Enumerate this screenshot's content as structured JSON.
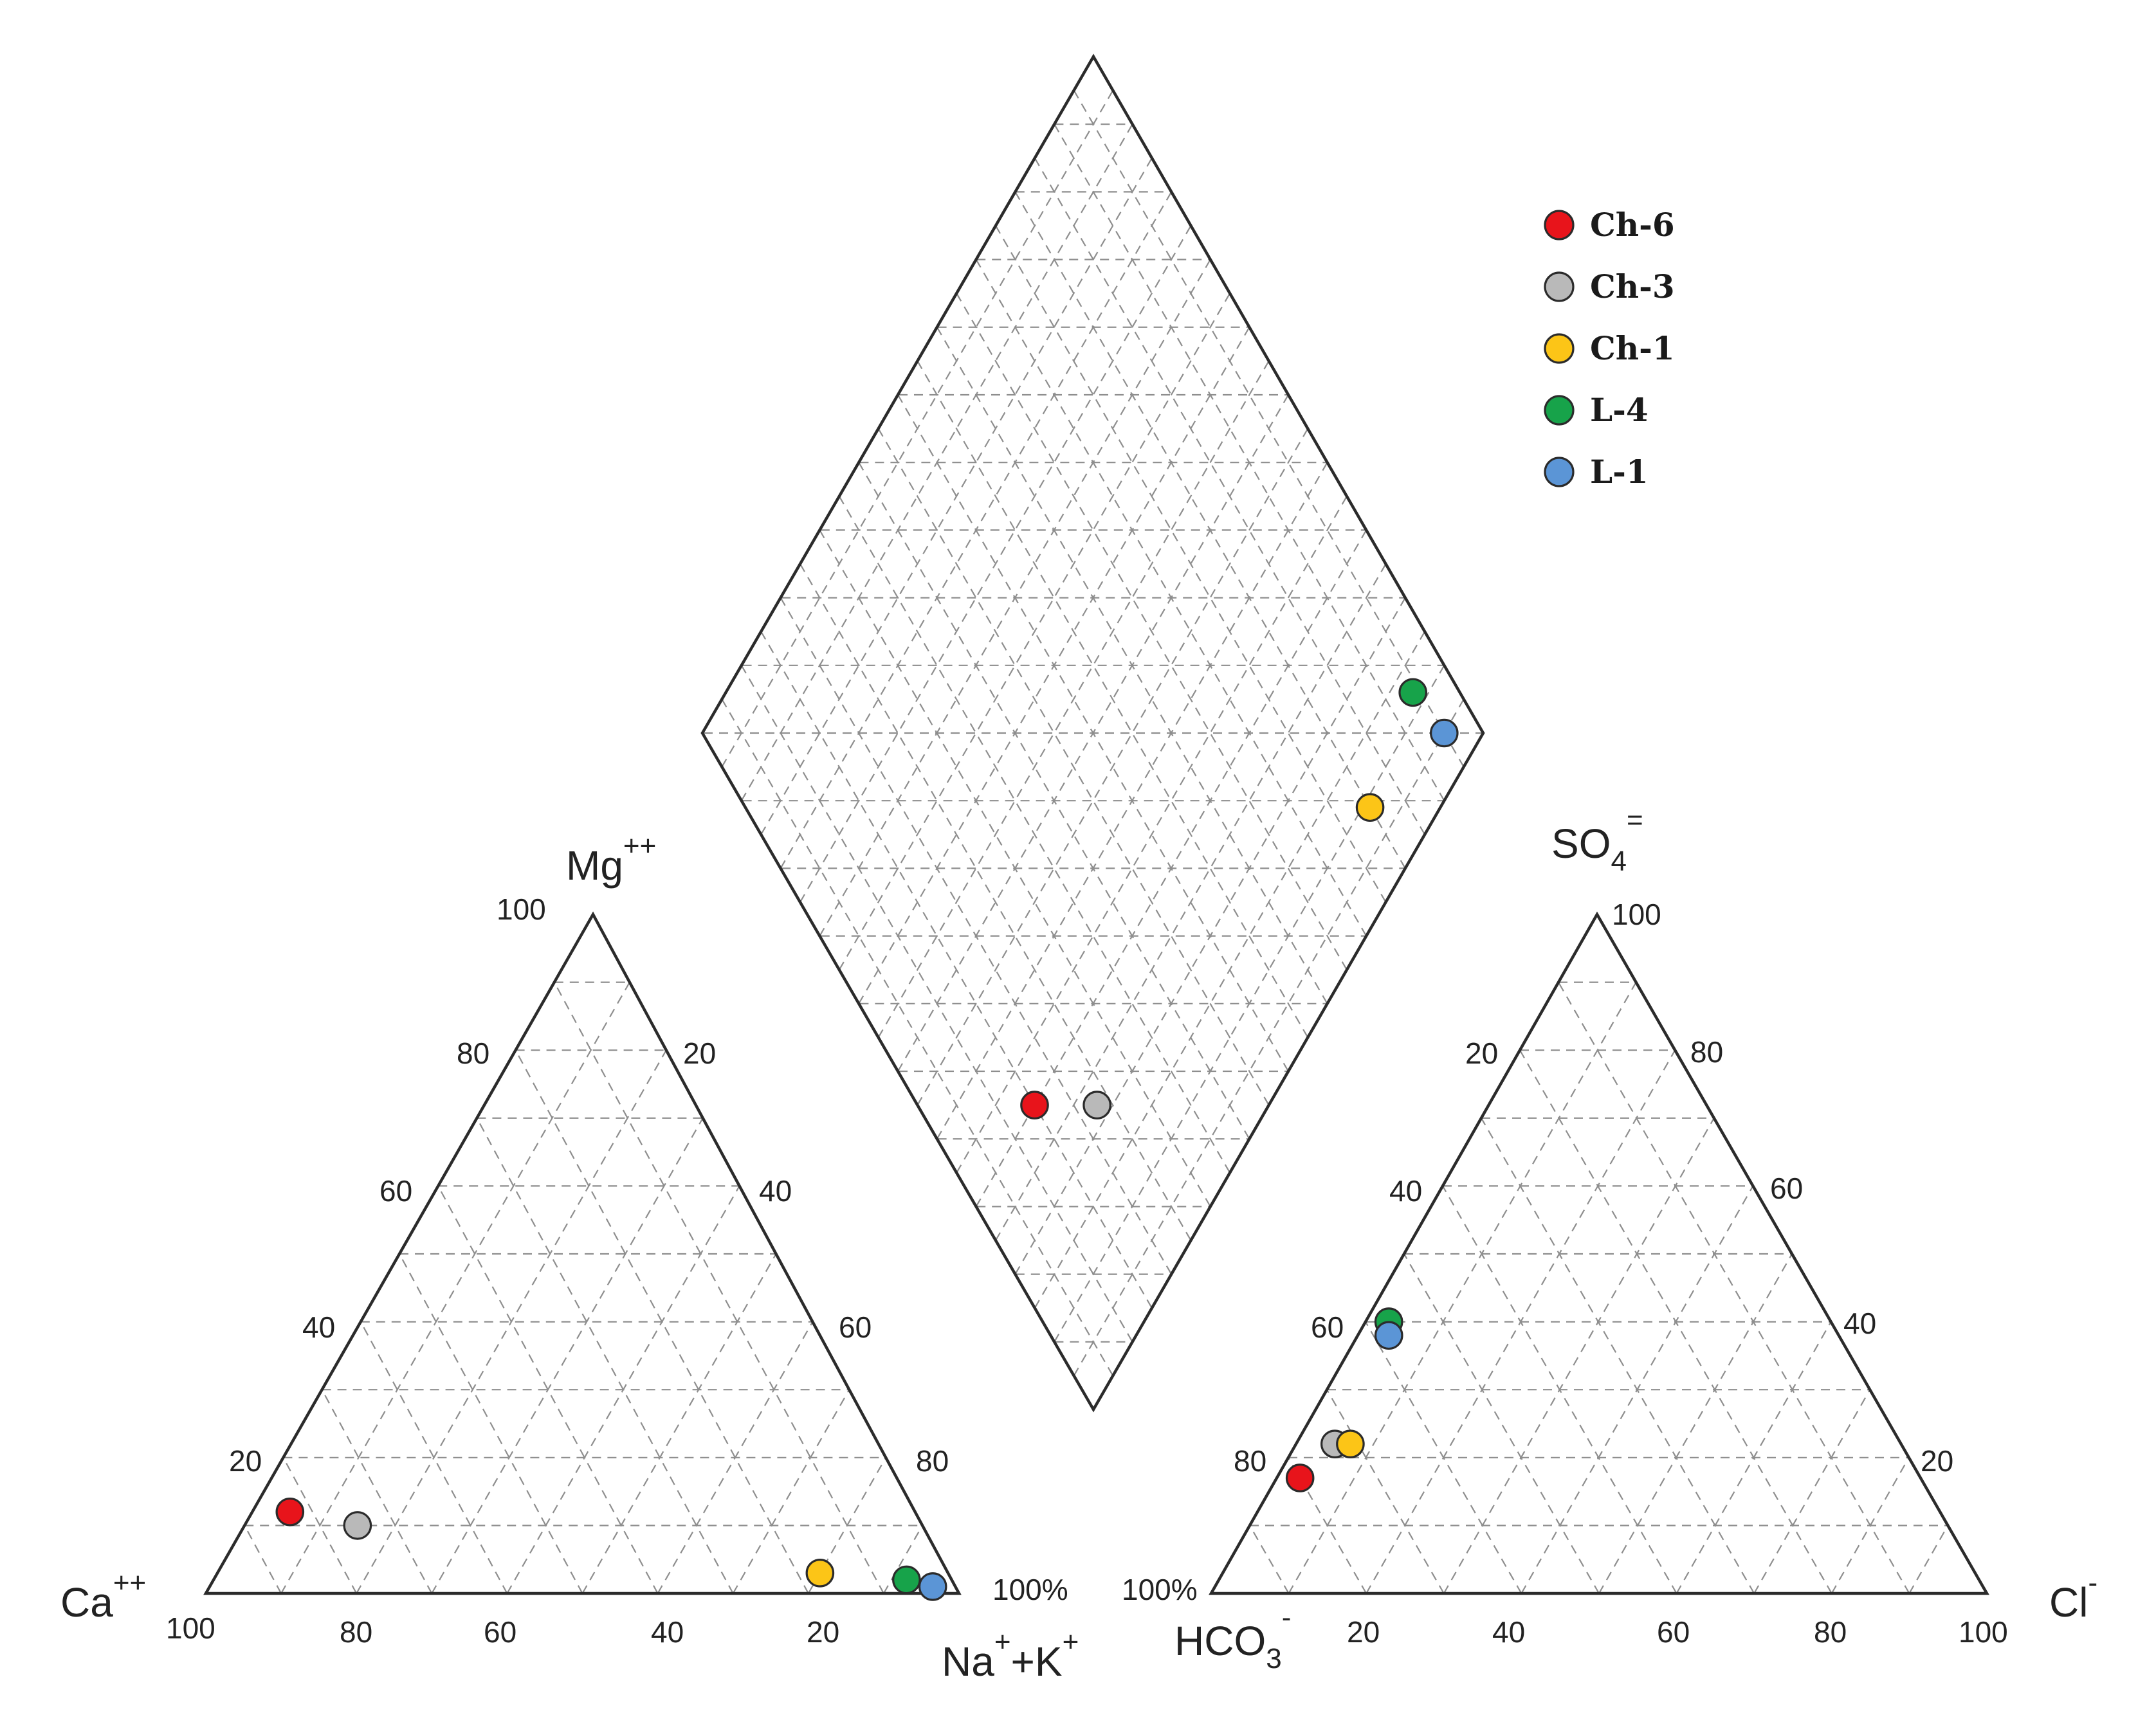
{
  "chart_data": {
    "type": "piper",
    "cation_triangle": {
      "apex_label": "Mg",
      "apex_label_sup": "++",
      "left_label": "Ca",
      "left_label_sup": "++",
      "right_label": "Na",
      "right_label_sup": "+",
      "right_label_mid": "+K",
      "right_label_sup2": "+",
      "bottom_ticks": [
        "100",
        "80",
        "60",
        "40",
        "20",
        "100%"
      ],
      "left_ticks": [
        "20",
        "40",
        "60",
        "80",
        "100"
      ],
      "right_ticks": [
        "20",
        "40",
        "60",
        "80"
      ]
    },
    "anion_triangle": {
      "apex_label": "SO",
      "apex_label_sub": "4",
      "apex_label_sup": "=",
      "left_label": "HCO",
      "left_label_sub": "3",
      "left_label_sup": "-",
      "right_label": "Cl",
      "right_label_sup": "-",
      "bottom_ticks": [
        "100%",
        "20",
        "40",
        "60",
        "80",
        "100"
      ],
      "left_ticks": [
        "80",
        "60",
        "40",
        "20"
      ],
      "right_ticks": [
        "20",
        "40",
        "60",
        "80",
        "100"
      ]
    },
    "samples": [
      {
        "name": "Ch-6",
        "color": "#e8141b",
        "cation": {
          "Ca": 83,
          "Mg": 12,
          "NaK": 5
        },
        "anion": {
          "HCO3": 80,
          "SO4": 17,
          "Cl": 3
        }
      },
      {
        "name": "Ch-3",
        "color": "#b9b9b9",
        "cation": {
          "Ca": 75,
          "Mg": 10,
          "NaK": 15
        },
        "anion": {
          "HCO3": 73,
          "SO4": 22,
          "Cl": 5
        }
      },
      {
        "name": "Ch-1",
        "color": "#fcc517",
        "cation": {
          "Ca": 17,
          "Mg": 3,
          "NaK": 80
        },
        "anion": {
          "HCO3": 71,
          "SO4": 22,
          "Cl": 7
        }
      },
      {
        "name": "L-4",
        "color": "#17a34a",
        "cation": {
          "Ca": 6,
          "Mg": 2,
          "NaK": 92
        },
        "anion": {
          "HCO3": 57,
          "SO4": 40,
          "Cl": 3
        }
      },
      {
        "name": "L-1",
        "color": "#5b95d6",
        "cation": {
          "Ca": 3,
          "Mg": 1,
          "NaK": 96
        },
        "anion": {
          "HCO3": 58,
          "SO4": 38,
          "Cl": 4
        }
      }
    ],
    "diamond_points": [
      {
        "name": "Ch-6",
        "x": 15,
        "y": 30
      },
      {
        "name": "Ch-3",
        "x": 23,
        "y": 22
      },
      {
        "name": "Ch-1",
        "x": 80,
        "y": 9
      },
      {
        "name": "L-4",
        "x": 94,
        "y": 12
      },
      {
        "name": "L-1",
        "x": 95,
        "y": 5
      }
    ],
    "legend": [
      "Ch-6",
      "Ch-3",
      "Ch-1",
      "L-4",
      "L-1"
    ],
    "legend_position": "top-right",
    "grid": true
  }
}
